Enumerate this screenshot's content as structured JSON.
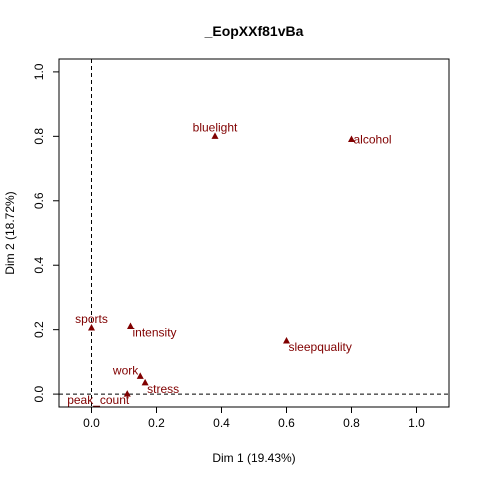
{
  "chart_data": {
    "type": "scatter",
    "title": "_EopXXf81vBa",
    "xlabel": "Dim 1 (19.43%)",
    "ylabel": "Dim 2 (18.72%)",
    "xlim": [
      -0.1,
      1.1
    ],
    "ylim": [
      -0.04,
      1.04
    ],
    "xticks": [
      0.0,
      0.2,
      0.4,
      0.6,
      0.8,
      1.0
    ],
    "yticks": [
      0.0,
      0.2,
      0.4,
      0.6,
      0.8,
      1.0
    ],
    "xtick_labels": [
      "0.0",
      "0.2",
      "0.4",
      "0.6",
      "0.8",
      "1.0"
    ],
    "ytick_labels": [
      "0.0",
      "0.2",
      "0.4",
      "0.6",
      "0.8",
      "1.0"
    ],
    "reference_lines": {
      "x": 0,
      "y": 0,
      "style": "dashed"
    },
    "grid": false,
    "point_color": "#800000",
    "points": [
      {
        "label": "bluelight",
        "x": 0.38,
        "y": 0.8,
        "label_pos": "above"
      },
      {
        "label": "alcohol",
        "x": 0.8,
        "y": 0.79,
        "label_pos": "right"
      },
      {
        "label": "sports",
        "x": 0.0,
        "y": 0.205,
        "label_pos": "above"
      },
      {
        "label": "intensity",
        "x": 0.12,
        "y": 0.21,
        "label_pos": "below-right"
      },
      {
        "label": "sleepquality",
        "x": 0.6,
        "y": 0.165,
        "label_pos": "below-right"
      },
      {
        "label": "work",
        "x": 0.15,
        "y": 0.055,
        "label_pos": "left"
      },
      {
        "label": "stress",
        "x": 0.165,
        "y": 0.035,
        "label_pos": "below-right"
      },
      {
        "label": "peak_count",
        "x": 0.11,
        "y": 0.0,
        "label_pos": "below-left"
      }
    ]
  }
}
